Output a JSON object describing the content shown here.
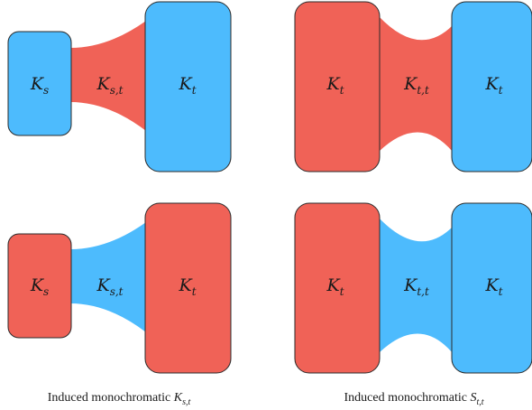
{
  "colors": {
    "red": "#f06257",
    "blue": "#4dbbfd",
    "stroke": "#2b2b2b"
  },
  "diagrams": [
    {
      "left": {
        "label": "K",
        "sub": "s",
        "color": "blue"
      },
      "bridge": {
        "label": "K",
        "sub": "s,t",
        "color": "red"
      },
      "right": {
        "label": "K",
        "sub": "t",
        "color": "blue"
      }
    },
    {
      "left": {
        "label": "K",
        "sub": "t",
        "color": "red"
      },
      "bridge": {
        "label": "K",
        "sub": "t,t",
        "color": "red"
      },
      "right": {
        "label": "K",
        "sub": "t",
        "color": "blue"
      }
    },
    {
      "left": {
        "label": "K",
        "sub": "s",
        "color": "red"
      },
      "bridge": {
        "label": "K",
        "sub": "s,t",
        "color": "blue"
      },
      "right": {
        "label": "K",
        "sub": "t",
        "color": "red"
      }
    },
    {
      "left": {
        "label": "K",
        "sub": "t",
        "color": "red"
      },
      "bridge": {
        "label": "K",
        "sub": "t,t",
        "color": "blue"
      },
      "right": {
        "label": "K",
        "sub": "t",
        "color": "blue"
      }
    }
  ],
  "captions": [
    {
      "text": "Induced monochromatic ",
      "sym": "K",
      "sub": "s,t"
    },
    {
      "text": "Induced monochromatic ",
      "sym": "S",
      "sub": "t,t"
    }
  ]
}
